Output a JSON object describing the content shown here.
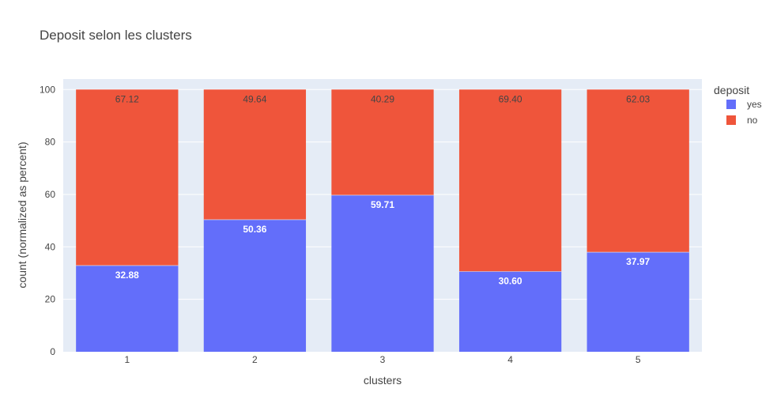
{
  "chart_data": {
    "type": "bar",
    "barmode": "stack",
    "title": "Deposit selon les clusters",
    "xlabel": "clusters",
    "ylabel": "count (normalized as percent)",
    "ylim": [
      0,
      104
    ],
    "yticks": [
      0,
      20,
      40,
      60,
      80,
      100
    ],
    "grid": true,
    "categories": [
      "1",
      "2",
      "3",
      "4",
      "5"
    ],
    "legend": {
      "title": "deposit",
      "position": "top-right"
    },
    "series": [
      {
        "name": "yes",
        "color": "#636efa",
        "values": [
          32.88,
          50.36,
          59.71,
          30.6,
          37.97
        ],
        "labels": [
          "32.88",
          "50.36",
          "59.71",
          "30.60",
          "37.97"
        ],
        "label_color": "#ffffff"
      },
      {
        "name": "no",
        "color": "#ef553b",
        "values": [
          67.12,
          49.64,
          40.29,
          69.4,
          62.03
        ],
        "labels": [
          "67.12",
          "49.64",
          "40.29",
          "69.40",
          "62.03"
        ],
        "label_color": "#444444"
      }
    ],
    "colors": {
      "plot_bg": "#e5ecf6",
      "grid": "#ffffff",
      "text": "#444444"
    }
  }
}
